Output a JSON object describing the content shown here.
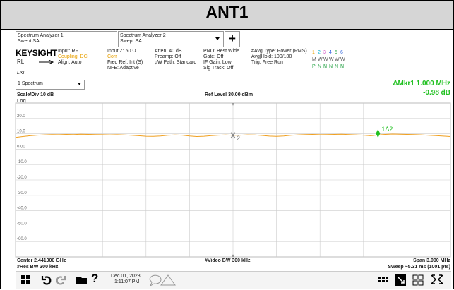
{
  "title": "ANT1",
  "tabs": [
    {
      "line1": "Spectrum Analyzer 1",
      "line2": "Swept SA"
    },
    {
      "line1": "Spectrum Analyzer 2",
      "line2": "Swept SA"
    }
  ],
  "tab_add": "+",
  "logo": "KEYSIGHT",
  "status": {
    "rl": "RL",
    "lxi": "LXI",
    "col1": [
      "Input: RF",
      "Coupling: DC",
      "Align: Auto"
    ],
    "col2": [
      "Input Z: 50 Ω",
      "Corr",
      "Freq Ref: Int (S)",
      "NFE: Adaptive"
    ],
    "col3": [
      "Atten: 40 dB",
      "Preamp: Off",
      "µW Path: Standard"
    ],
    "col4": [
      "PNO: Best Wide",
      "Gate: Off",
      "IF Gain: Low",
      "Sig Track: Off"
    ],
    "col5": [
      "#Avg Type: Power (RMS)",
      "Avg|Hold: 100/100",
      "Trig: Free Run"
    ],
    "traces": [
      "1",
      "2",
      "3",
      "4",
      "5",
      "6"
    ],
    "trace_colors": [
      "#e8a000",
      "#00b0d0",
      "#d040c0",
      "#3060e0",
      "#20a040",
      "#4070e0"
    ],
    "types": [
      "M",
      "W",
      "W",
      "W",
      "W",
      "W"
    ],
    "dets": [
      "P",
      "N",
      "N",
      "N",
      "N",
      "N"
    ]
  },
  "view": "1 Spectrum",
  "marker_readout": {
    "label": "ΔMkr1 1.000 MHz",
    "value": "-0.98 dB"
  },
  "scale": "Scale/Div 10 dB",
  "ref_level": "Ref Level 30.00 dBm",
  "log": "Log",
  "plot": {
    "ylim": [
      -70,
      30
    ],
    "yticks": [
      {
        "value": 20,
        "label": "20.0"
      },
      {
        "value": 10,
        "label": "10.0"
      },
      {
        "value": 0,
        "label": "0.00"
      },
      {
        "value": -10,
        "label": "-10.0"
      },
      {
        "value": -20,
        "label": "-20.0"
      },
      {
        "value": -30,
        "label": "-30.0"
      },
      {
        "value": -40,
        "label": "-40.0"
      },
      {
        "value": -50,
        "label": "-50.0"
      },
      {
        "value": -60,
        "label": "-60.0"
      }
    ],
    "xlim": [
      -1.5,
      1.5
    ],
    "xticks": [
      -1.5,
      -1.2,
      -0.9,
      -0.6,
      -0.3,
      0,
      0.3,
      0.6,
      0.9,
      1.2,
      1.5
    ],
    "trace": {
      "color": "#f0a020",
      "values": [
        7.6,
        8.2,
        8.7,
        9.1,
        9.3,
        9.5,
        9.4,
        9.6,
        9.5,
        9.7,
        9.6,
        9.5,
        9.4,
        9.3,
        9.4,
        9.2,
        9.0,
        8.7,
        8.4,
        8.3,
        8.6,
        9.0,
        9.2,
        9.1,
        8.6,
        8.2,
        8.4,
        8.8,
        9.1,
        9.2,
        9.0,
        9.1,
        9.3,
        9.2,
        8.9,
        8.5,
        8.3,
        8.6,
        9.0,
        9.3,
        9.5,
        9.6,
        9.4,
        9.5,
        9.6,
        9.7,
        9.5,
        9.3,
        9.1,
        8.7,
        9.2,
        9.6,
        9.8,
        9.7,
        9.6,
        9.5,
        9.3,
        9.0,
        8.8,
        8.5,
        8.2
      ]
    },
    "markers": [
      {
        "label": "1Δ2",
        "x": 1.0,
        "y": 10.2,
        "color": "#20c020"
      },
      {
        "label": "2",
        "x": 0.0,
        "y": 9.0,
        "color": "#808080"
      }
    ]
  },
  "footer": {
    "center": "Center 2.441000 GHz",
    "rbw": "#Res BW 300 kHz",
    "vbw": "#Video BW 300 kHz",
    "span": "Span 3.000 MHz",
    "sweep": "Sweep ~5.31 ms (1001 pts)"
  },
  "taskbar": {
    "help": "?",
    "date": "Dec 01, 2023",
    "time": "1:11:07 PM"
  }
}
